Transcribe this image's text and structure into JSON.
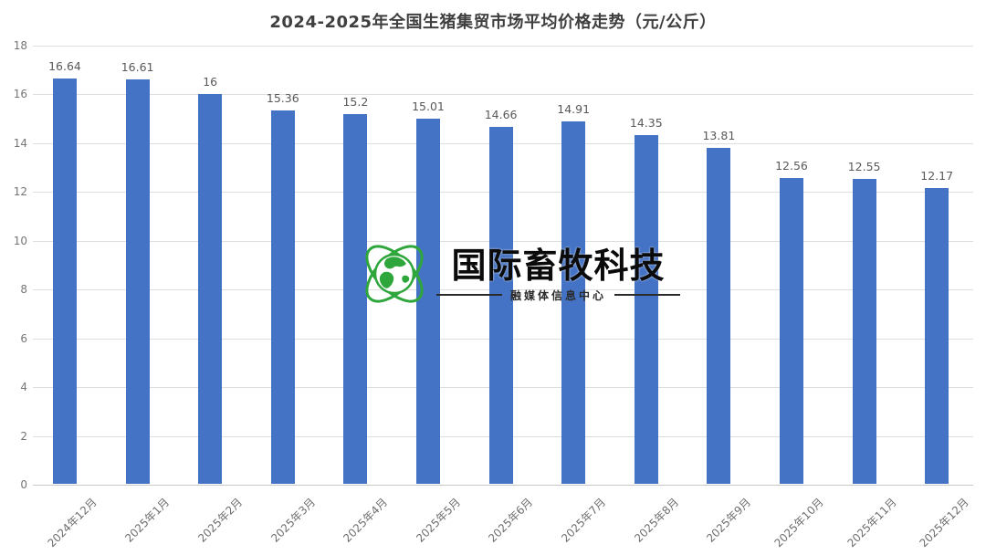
{
  "chart_data": {
    "type": "bar",
    "title": "2024-2025年全国生猪集贸市场平均价格走势（元/公斤）",
    "categories": [
      "2024年12月",
      "2025年1月",
      "2025年2月",
      "2025年3月",
      "2025年4月",
      "2025年5月",
      "2025年6月",
      "2025年7月",
      "2025年8月",
      "2025年9月",
      "2025年10月",
      "2025年11月",
      "2025年12月"
    ],
    "values": [
      16.64,
      16.61,
      16,
      15.36,
      15.2,
      15.01,
      14.66,
      14.91,
      14.35,
      13.81,
      12.56,
      12.55,
      12.17
    ],
    "value_labels": [
      "16.64",
      "16.61",
      "16",
      "15.36",
      "15.2",
      "15.01",
      "14.66",
      "14.91",
      "14.35",
      "13.81",
      "12.56",
      "12.55",
      "12.17"
    ],
    "xlabel": "",
    "ylabel": "",
    "ylim": [
      0,
      18
    ],
    "ytick_step": 2,
    "grid": true,
    "legend": "none",
    "bar_color": "#4472C4",
    "value_label_color": "#595959",
    "axis_text_color": "#757575",
    "x_axis_text_color": "#6e6e6e",
    "grid_color": "#dedede",
    "baseline_color": "#c9c9c9",
    "title_color": "#3f3f3f"
  },
  "watermark": {
    "brand": "国际畜牧科技",
    "tagline": "融媒体信息中心",
    "logo_icon": "globe-orbit-icon",
    "brand_color": "#0b0b0b",
    "tagline_color": "#2b2b2b",
    "logo_color": "#2ea63c"
  }
}
